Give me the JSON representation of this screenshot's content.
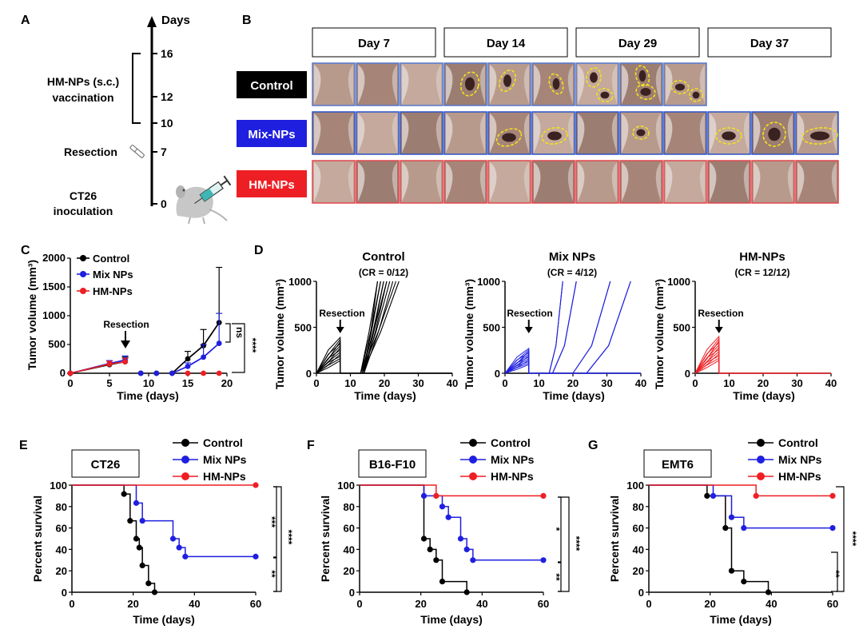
{
  "panel_letters": [
    "A",
    "B",
    "C",
    "D",
    "E",
    "F",
    "G"
  ],
  "timeline": {
    "axis_label": "Days",
    "day_marks": [
      "16",
      "12",
      "10",
      "7",
      "0"
    ],
    "vaccination_label_1": "HM-NPs (s.c.)",
    "vaccination_label_2": "vaccination",
    "resection_label": "Resection",
    "inoculation_label_1": "CT26",
    "inoculation_label_2": "inoculation"
  },
  "photos": {
    "day_headers": [
      "Day 7",
      "Day 14",
      "Day 29",
      "Day 37"
    ],
    "groups": [
      {
        "label": "Control",
        "bg_color": "#000000",
        "text_color": "#ffffff",
        "border_color": "#5577cc",
        "count": 9
      },
      {
        "label": "Mix-NPs",
        "bg_color": "#1f1fe0",
        "text_color": "#ffffff",
        "border_color": "#2a52c8",
        "count": 12
      },
      {
        "label": "HM-NPs",
        "bg_color": "#ee1f24",
        "text_color": "#ffffff",
        "border_color": "#e0474c",
        "count": 12
      }
    ]
  },
  "chart_data": [
    {
      "panel": "C",
      "type": "line",
      "xlabel": "Time (days)",
      "ylabel": "Tumor volume (mm³)",
      "xlim": [
        0,
        20
      ],
      "ylim": [
        0,
        2000
      ],
      "xticks": [
        "0",
        "5",
        "10",
        "15",
        "20"
      ],
      "yticks": [
        "0",
        "500",
        "1000",
        "1500",
        "2000"
      ],
      "annotation": "Resection",
      "annotation_x": 7,
      "sig": [
        "ns",
        "****"
      ],
      "series": [
        {
          "name": "Control",
          "color": "#000000",
          "x": [
            0,
            5,
            7,
            9,
            11,
            13,
            15,
            17,
            19
          ],
          "y": [
            0,
            150,
            200,
            0,
            0,
            0,
            250,
            480,
            880
          ],
          "err": [
            0,
            60,
            80,
            0,
            0,
            0,
            130,
            280,
            960
          ]
        },
        {
          "name": "Mix NPs",
          "color": "#1f1fe0",
          "x": [
            0,
            5,
            7,
            9,
            11,
            13,
            15,
            17,
            19
          ],
          "y": [
            0,
            170,
            230,
            0,
            0,
            0,
            120,
            280,
            520
          ],
          "err": [
            0,
            50,
            70,
            0,
            0,
            0,
            60,
            220,
            520
          ]
        },
        {
          "name": "HM-NPs",
          "color": "#ee1f24",
          "x": [
            0,
            5,
            7,
            15,
            17,
            19
          ],
          "y": [
            0,
            160,
            200,
            0,
            0,
            0
          ],
          "err": [
            0,
            50,
            60,
            0,
            0,
            0
          ]
        }
      ]
    },
    {
      "panel": "D",
      "type": "line",
      "plots": [
        {
          "title": "Control",
          "subtitle": "(CR = 0/12)",
          "color": "#000000",
          "responders": 0
        },
        {
          "title": "Mix NPs",
          "subtitle": "(CR = 4/12)",
          "color": "#1f1fe0",
          "responders": 4
        },
        {
          "title": "HM-NPs",
          "subtitle": "(CR = 12/12)",
          "color": "#ee1f24",
          "responders": 12
        }
      ],
      "xlabel": "Time (days)",
      "ylabel": "Tumor volume (mm³)",
      "xlim": [
        0,
        40
      ],
      "ylim": [
        0,
        1000
      ],
      "xticks": [
        "0",
        "10",
        "20",
        "30",
        "40"
      ],
      "yticks": [
        "0",
        "500",
        "1000"
      ],
      "annotation": "Resection",
      "annotation_x": 7
    },
    {
      "panel": "E",
      "type": "line",
      "title": "CT26",
      "xlabel": "Time (days)",
      "ylabel": "Percent survival",
      "xlim": [
        0,
        60
      ],
      "ylim": [
        0,
        100
      ],
      "xticks": [
        "0",
        "20",
        "40",
        "60"
      ],
      "yticks": [
        "0",
        "20",
        "40",
        "60",
        "80",
        "100"
      ],
      "sig": [
        "***",
        "****",
        "**"
      ],
      "series": [
        {
          "name": "Control",
          "color": "#000000",
          "steps": [
            [
              17,
              91.7
            ],
            [
              19,
              66.7
            ],
            [
              21,
              50
            ],
            [
              22,
              41.7
            ],
            [
              23,
              25
            ],
            [
              25,
              8.3
            ],
            [
              27,
              0
            ]
          ]
        },
        {
          "name": "Mix NPs",
          "color": "#1f1fe0",
          "steps": [
            [
              21,
              83.3
            ],
            [
              23,
              66.7
            ],
            [
              33,
              50
            ],
            [
              35,
              41.7
            ],
            [
              37,
              33.3
            ]
          ],
          "end": 60
        },
        {
          "name": "HM-NPs",
          "color": "#ee1f24",
          "steps": [],
          "end": 60
        }
      ]
    },
    {
      "panel": "F",
      "type": "line",
      "title": "B16-F10",
      "xlabel": "Time (days)",
      "ylabel": "Percent survival",
      "xlim": [
        0,
        60
      ],
      "ylim": [
        0,
        100
      ],
      "xticks": [
        "0",
        "20",
        "40",
        "60"
      ],
      "yticks": [
        "0",
        "20",
        "40",
        "60",
        "80",
        "100"
      ],
      "sig": [
        "*",
        "****",
        "**"
      ],
      "series": [
        {
          "name": "Control",
          "color": "#000000",
          "steps": [
            [
              21,
              50
            ],
            [
              23,
              40
            ],
            [
              25,
              30
            ],
            [
              27,
              10
            ],
            [
              35,
              0
            ]
          ]
        },
        {
          "name": "Mix NPs",
          "color": "#1f1fe0",
          "steps": [
            [
              21,
              90
            ],
            [
              27,
              80
            ],
            [
              29,
              70
            ],
            [
              33,
              50
            ],
            [
              35,
              40
            ],
            [
              37,
              30
            ]
          ],
          "end": 60
        },
        {
          "name": "HM-NPs",
          "color": "#ee1f24",
          "steps": [
            [
              25,
              90
            ]
          ],
          "end": 60
        }
      ]
    },
    {
      "panel": "G",
      "type": "line",
      "title": "EMT6",
      "xlabel": "Time (days)",
      "ylabel": "Percent survival",
      "xlim": [
        0,
        60
      ],
      "ylim": [
        0,
        100
      ],
      "xticks": [
        "0",
        "20",
        "40",
        "60"
      ],
      "yticks": [
        "0",
        "20",
        "40",
        "60",
        "80",
        "100"
      ],
      "sig": [
        "****",
        "**"
      ],
      "series": [
        {
          "name": "Control",
          "color": "#000000",
          "steps": [
            [
              19,
              90
            ],
            [
              25,
              60
            ],
            [
              27,
              20
            ],
            [
              31,
              10
            ],
            [
              39,
              0
            ]
          ]
        },
        {
          "name": "Mix NPs",
          "color": "#1f1fe0",
          "steps": [
            [
              21,
              90
            ],
            [
              27,
              70
            ],
            [
              31,
              60
            ]
          ],
          "end": 60
        },
        {
          "name": "HM-NPs",
          "color": "#ee1f24",
          "steps": [
            [
              35,
              90
            ]
          ],
          "end": 60
        }
      ]
    }
  ]
}
